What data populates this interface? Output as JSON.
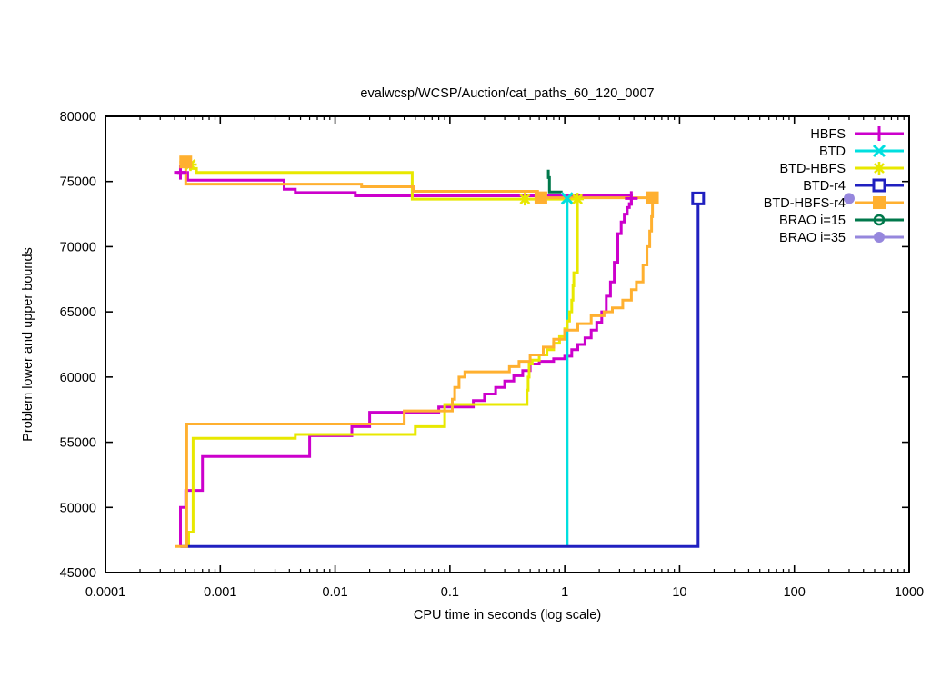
{
  "chart_data": {
    "type": "line",
    "title": "evalwcsp/WCSP/Auction/cat_paths_60_120_0007",
    "xlabel": "CPU time in seconds (log scale)",
    "ylabel": "Problem lower and upper bounds",
    "x_axis": {
      "scale": "log",
      "min": 0.0001,
      "max": 1000,
      "tick_labels": [
        "0.0001",
        "0.001",
        "0.01",
        "0.1",
        "1",
        "10",
        "100",
        "1000"
      ]
    },
    "y_axis": {
      "scale": "linear",
      "min": 45000,
      "max": 80000,
      "tick_step": 5000,
      "tick_labels": [
        "45000",
        "50000",
        "55000",
        "60000",
        "65000",
        "70000",
        "75000",
        "80000"
      ]
    },
    "grid": false,
    "legend_position": "top-right",
    "series": [
      {
        "name": "HBFS",
        "color": "#cc00cc",
        "marker": "plus",
        "segments": [
          [
            [
              0.00042,
              75700
            ],
            [
              0.00052,
              75700
            ],
            [
              0.00052,
              75100
            ],
            [
              0.0036,
              75100
            ],
            [
              0.0036,
              74400
            ],
            [
              0.0045,
              74400
            ],
            [
              0.0045,
              74150
            ],
            [
              0.015,
              74150
            ],
            [
              0.015,
              73900
            ],
            [
              3.8,
              73900
            ],
            [
              3.8,
              73700
            ]
          ],
          [
            [
              0.00045,
              47000
            ],
            [
              0.00045,
              50000
            ],
            [
              0.0005,
              50000
            ],
            [
              0.0005,
              51300
            ],
            [
              0.0007,
              51300
            ],
            [
              0.0007,
              53900
            ],
            [
              0.006,
              53900
            ],
            [
              0.006,
              55500
            ],
            [
              0.014,
              55500
            ],
            [
              0.014,
              56200
            ],
            [
              0.02,
              56200
            ],
            [
              0.02,
              57300
            ],
            [
              0.08,
              57300
            ],
            [
              0.08,
              57700
            ],
            [
              0.13,
              57700
            ],
            [
              0.16,
              58200
            ],
            [
              0.2,
              58700
            ],
            [
              0.25,
              59200
            ],
            [
              0.3,
              59700
            ],
            [
              0.36,
              60100
            ],
            [
              0.43,
              60500
            ],
            [
              0.5,
              61000
            ],
            [
              0.6,
              61200
            ],
            [
              0.8,
              61400
            ],
            [
              1.0,
              61600
            ],
            [
              1.15,
              62100
            ],
            [
              1.3,
              62500
            ],
            [
              1.5,
              63000
            ],
            [
              1.7,
              63600
            ],
            [
              1.9,
              64200
            ],
            [
              2.1,
              65000
            ],
            [
              2.3,
              66200
            ],
            [
              2.5,
              67300
            ],
            [
              2.7,
              68800
            ],
            [
              2.9,
              71000
            ],
            [
              3.1,
              71900
            ],
            [
              3.3,
              72500
            ],
            [
              3.5,
              73000
            ],
            [
              3.65,
              73300
            ],
            [
              3.8,
              73700
            ]
          ]
        ],
        "marker_points": [
          [
            0.00045,
            75700
          ],
          [
            3.8,
            73700
          ]
        ]
      },
      {
        "name": "BTD",
        "color": "#00dfdf",
        "marker": "cross",
        "segments": [
          [
            [
              1.05,
              47000
            ],
            [
              1.05,
              73700
            ]
          ]
        ],
        "marker_points": [
          [
            1.05,
            73700
          ]
        ]
      },
      {
        "name": "BTD-HBFS",
        "color": "#e8e800",
        "marker": "asterisk",
        "segments": [
          [
            [
              0.00055,
              76300
            ],
            [
              0.00055,
              76000
            ],
            [
              0.00062,
              76000
            ],
            [
              0.00062,
              75700
            ],
            [
              0.047,
              75700
            ],
            [
              0.047,
              73650
            ],
            [
              1.29,
              73650
            ]
          ],
          [
            [
              0.00053,
              47000
            ],
            [
              0.00053,
              48100
            ],
            [
              0.00058,
              48100
            ],
            [
              0.00058,
              55300
            ],
            [
              0.0045,
              55300
            ],
            [
              0.0045,
              55600
            ],
            [
              0.05,
              55600
            ],
            [
              0.05,
              56200
            ],
            [
              0.09,
              56200
            ],
            [
              0.09,
              57900
            ],
            [
              0.47,
              57900
            ],
            [
              0.47,
              59000
            ],
            [
              0.48,
              60000
            ],
            [
              0.49,
              61000
            ],
            [
              0.52,
              61300
            ],
            [
              0.6,
              61700
            ],
            [
              0.7,
              62100
            ],
            [
              0.8,
              62600
            ],
            [
              0.9,
              63100
            ],
            [
              1.0,
              63700
            ],
            [
              1.05,
              64300
            ],
            [
              1.1,
              65000
            ],
            [
              1.15,
              65900
            ],
            [
              1.18,
              67000
            ],
            [
              1.2,
              68000
            ],
            [
              1.29,
              68000
            ],
            [
              1.29,
              73650
            ]
          ]
        ],
        "marker_points": [
          [
            0.00055,
            76300
          ],
          [
            0.45,
            73650
          ],
          [
            1.29,
            73650
          ]
        ]
      },
      {
        "name": "BTD-r4",
        "color": "#2020c0",
        "marker": "square-open",
        "segments": [
          [
            [
              0.00045,
              47000
            ],
            [
              14.5,
              47000
            ],
            [
              14.5,
              73700
            ]
          ]
        ],
        "marker_points": [
          [
            14.5,
            73700
          ]
        ]
      },
      {
        "name": "BTD-HBFS-r4",
        "color": "#ffb030",
        "marker": "square-filled",
        "segments": [
          [
            [
              0.00044,
              76500
            ],
            [
              0.0005,
              76500
            ],
            [
              0.0005,
              74800
            ],
            [
              0.017,
              74800
            ],
            [
              0.017,
              74600
            ],
            [
              0.048,
              74600
            ],
            [
              0.048,
              74250
            ],
            [
              0.58,
              74250
            ],
            [
              0.58,
              73750
            ],
            [
              5.8,
              73750
            ]
          ],
          [
            [
              0.0004,
              47000
            ],
            [
              0.00051,
              47000
            ],
            [
              0.00051,
              56400
            ],
            [
              0.04,
              56400
            ],
            [
              0.04,
              57400
            ],
            [
              0.1,
              57400
            ],
            [
              0.105,
              58300
            ],
            [
              0.11,
              59200
            ],
            [
              0.12,
              60000
            ],
            [
              0.135,
              60400
            ],
            [
              0.27,
              60400
            ],
            [
              0.33,
              60800
            ],
            [
              0.4,
              61200
            ],
            [
              0.5,
              61700
            ],
            [
              0.65,
              62300
            ],
            [
              0.8,
              62900
            ],
            [
              1.0,
              63600
            ],
            [
              1.3,
              64100
            ],
            [
              1.7,
              64700
            ],
            [
              2.2,
              65000
            ],
            [
              2.6,
              65300
            ],
            [
              3.2,
              65900
            ],
            [
              3.8,
              66700
            ],
            [
              4.2,
              67300
            ],
            [
              4.8,
              68600
            ],
            [
              5.2,
              70000
            ],
            [
              5.5,
              71200
            ],
            [
              5.7,
              72300
            ],
            [
              5.8,
              72700
            ],
            [
              5.8,
              73750
            ]
          ]
        ],
        "marker_points": [
          [
            0.0005,
            76500
          ],
          [
            0.62,
            73750
          ],
          [
            5.8,
            73750
          ]
        ]
      },
      {
        "name": "BRAO i=15",
        "color": "#00784b",
        "marker": "circle-open",
        "segments": [
          [
            [
              0.72,
              75900
            ],
            [
              0.72,
              75300
            ],
            [
              0.735,
              75300
            ],
            [
              0.735,
              74200
            ],
            [
              0.93,
              74150
            ]
          ]
        ],
        "marker_points": []
      },
      {
        "name": "BRAO i=35",
        "color": "#9687dd",
        "marker": "circle-filled",
        "segments": [],
        "marker_points": [
          [
            300,
            73700
          ]
        ]
      }
    ]
  }
}
